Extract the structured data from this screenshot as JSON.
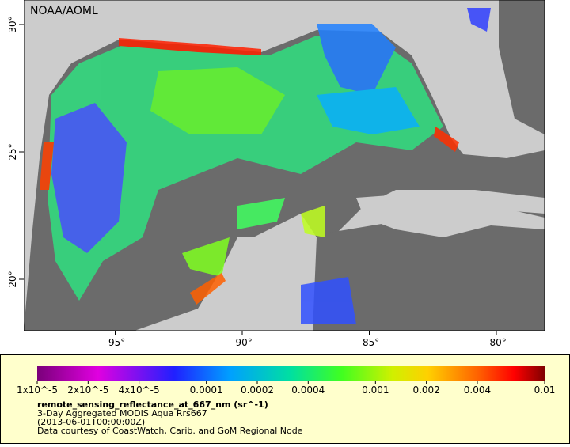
{
  "map": {
    "credit": "NOAA/AOML",
    "lon_ticks": [
      {
        "value": -95,
        "label": "-95°"
      },
      {
        "value": -90,
        "label": "-90°"
      },
      {
        "value": -85,
        "label": "-85°"
      },
      {
        "value": -80,
        "label": "-80°"
      }
    ],
    "lat_ticks": [
      {
        "value": 20,
        "label": "20°"
      },
      {
        "value": 25,
        "label": "25°"
      },
      {
        "value": 30,
        "label": "30°"
      }
    ]
  },
  "colorbar": {
    "scale": "log",
    "range": [
      1e-05,
      0.01
    ],
    "ticks": [
      {
        "value": 1e-05,
        "label": "1x10^-5"
      },
      {
        "value": 2e-05,
        "label": "2x10^-5"
      },
      {
        "value": 4e-05,
        "label": "4x10^-5"
      },
      {
        "value": 0.0001,
        "label": "0.0001"
      },
      {
        "value": 0.0002,
        "label": "0.0002"
      },
      {
        "value": 0.0004,
        "label": "0.0004"
      },
      {
        "value": 0.001,
        "label": "0.001"
      },
      {
        "value": 0.002,
        "label": "0.002"
      },
      {
        "value": 0.004,
        "label": "0.004"
      },
      {
        "value": 0.01,
        "label": "0.01"
      }
    ]
  },
  "caption": {
    "variable": "remote_sensing_reflectance_at_667_nm (sr^-1)",
    "line1": "3-Day Aggregated MODIS Aqua Rrs667",
    "line2": "(2013-06-01T00:00:00Z)",
    "line3": "Data courtesy of CoastWatch, Carib. and GoM Regional Node"
  }
}
